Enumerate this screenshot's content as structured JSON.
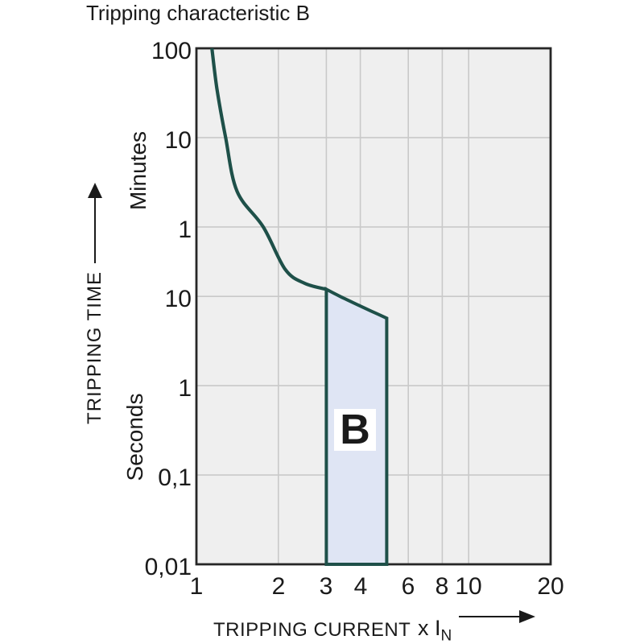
{
  "chart_data": {
    "type": "area",
    "title": "Tripping characteristic B",
    "x_axis": {
      "label": "TRIPPING CURRENT",
      "unit": "x I",
      "unit_subscript": "N",
      "scale": "log",
      "range": [
        1,
        20
      ],
      "ticks": [
        {
          "label": "1",
          "value": 1
        },
        {
          "label": "2",
          "value": 2
        },
        {
          "label": "3",
          "value": 3
        },
        {
          "label": "4",
          "value": 4
        },
        {
          "label": "6",
          "value": 6
        },
        {
          "label": "8",
          "value": 8
        },
        {
          "label": "10",
          "value": 10
        },
        {
          "label": "20",
          "value": 20
        }
      ],
      "gridline_values": [
        2,
        3,
        4,
        6,
        8,
        10
      ]
    },
    "y_axis": {
      "label": "TRIPPING TIME",
      "scale": "log",
      "top_seconds": 6000,
      "bottom_seconds": 0.01,
      "units": [
        {
          "name": "Minutes"
        },
        {
          "name": "Seconds"
        }
      ],
      "ticks": [
        {
          "label": "100",
          "seconds": 6000
        },
        {
          "label": "10",
          "seconds": 600
        },
        {
          "label": "1",
          "seconds": 60
        },
        {
          "label": "10",
          "seconds": 10
        },
        {
          "label": "1",
          "seconds": 1
        },
        {
          "label": "0,1",
          "seconds": 0.1
        },
        {
          "label": "0,01",
          "seconds": 0.01
        }
      ],
      "gridline_seconds": [
        600,
        60,
        10,
        1,
        0.1
      ]
    },
    "thermal_curve_points_x_t": [
      [
        1.14,
        6000
      ],
      [
        1.19,
        2100
      ],
      [
        1.28,
        600
      ],
      [
        1.41,
        150
      ],
      [
        1.76,
        60
      ],
      [
        2.12,
        20
      ],
      [
        2.5,
        14
      ],
      [
        3.0,
        12
      ]
    ],
    "instantaneous_region": {
      "label": "B",
      "x_range": [
        3,
        5
      ],
      "top_curve_points_x_t": [
        [
          3.0,
          12
        ],
        [
          3.37,
          10
        ],
        [
          4.0,
          7.8
        ],
        [
          4.5,
          6.6
        ],
        [
          5.0,
          5.7
        ]
      ],
      "bottom_seconds": 0.01
    }
  },
  "colors": {
    "curve": "#1e5049",
    "region_fill": "#dfe5f4",
    "plot_background": "#efefef",
    "grid": "#c9c9c9",
    "border": "#262626",
    "text": "#1a1a1a"
  }
}
